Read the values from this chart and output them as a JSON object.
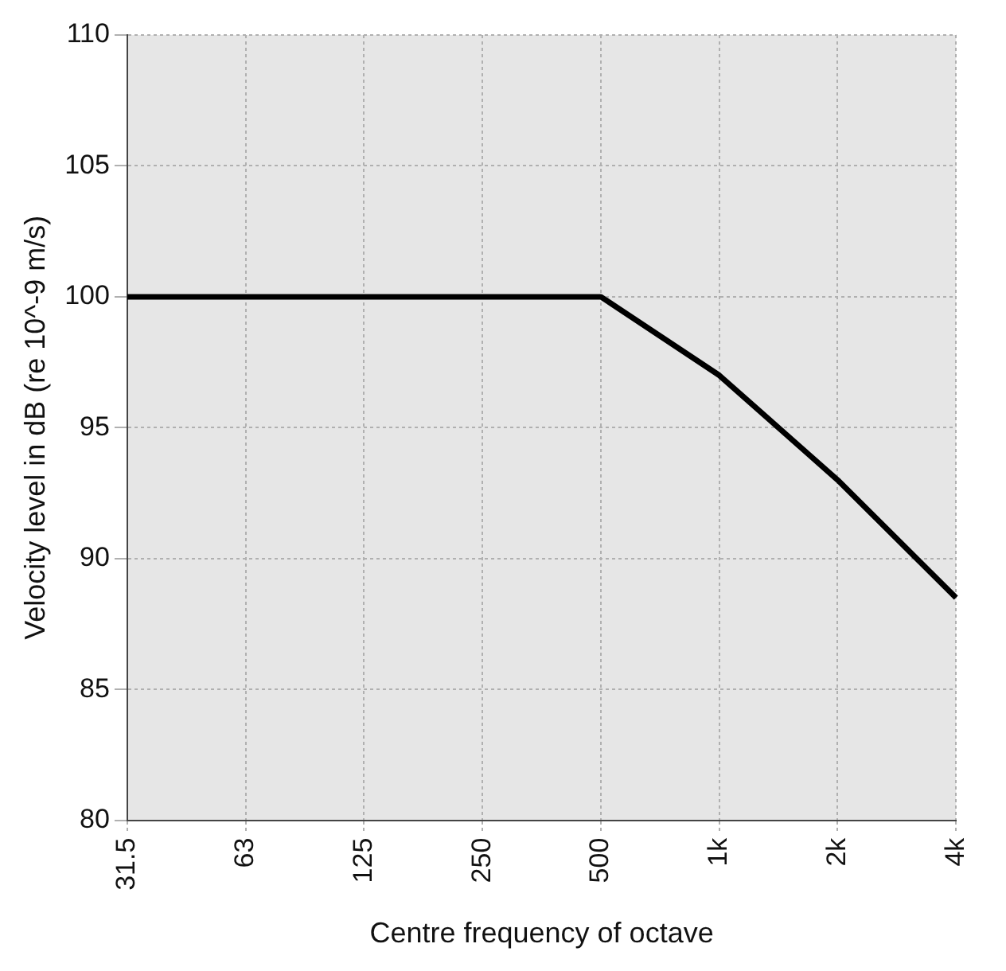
{
  "chart_data": {
    "type": "line",
    "xlabel": "Centre frequency of octave",
    "ylabel": "Velocity level in dB (re 10^-9 m/s)",
    "categories": [
      "31.5",
      "63",
      "125",
      "250",
      "500",
      "1k",
      "2k",
      "4k"
    ],
    "series": [
      {
        "color": "#000000",
        "values": [
          100,
          100,
          100,
          100,
          100,
          97,
          93,
          88.5
        ]
      }
    ],
    "ylim": [
      80,
      110
    ],
    "yticks": [
      80,
      85,
      90,
      95,
      100,
      105,
      110
    ],
    "grid": true,
    "marker": "none",
    "line_style": "solid",
    "legend": false
  }
}
